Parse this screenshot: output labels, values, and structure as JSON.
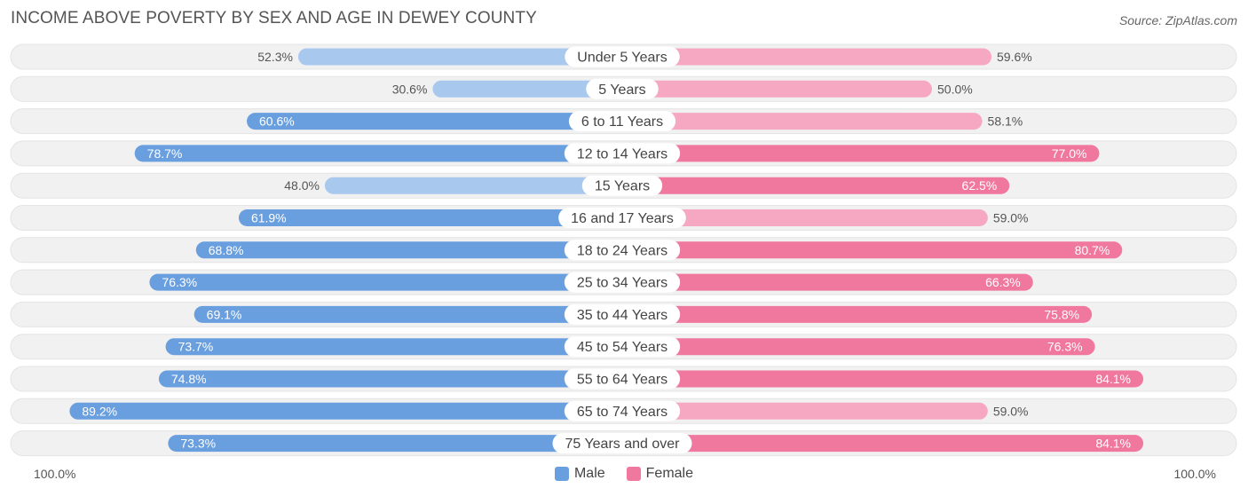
{
  "header": {
    "title": "INCOME ABOVE POVERTY BY SEX AND AGE IN DEWEY COUNTY",
    "source": "Source: ZipAtlas.com"
  },
  "axis": {
    "left_label": "100.0%",
    "right_label": "100.0%"
  },
  "legend": {
    "male_label": "Male",
    "female_label": "Female"
  },
  "colors": {
    "male_strong": "#6a9fdf",
    "male_light": "#a9c8ee",
    "female_strong": "#f0789f",
    "female_light": "#f6a8c2",
    "row_bg": "#f1f1f1"
  },
  "chart_data": {
    "type": "bar",
    "orientation": "horizontal-diverging",
    "title": "INCOME ABOVE POVERTY BY SEX AND AGE IN DEWEY COUNTY",
    "xlim": [
      0,
      100
    ],
    "categories": [
      "Under 5 Years",
      "5 Years",
      "6 to 11 Years",
      "12 to 14 Years",
      "15 Years",
      "16 and 17 Years",
      "18 to 24 Years",
      "25 to 34 Years",
      "35 to 44 Years",
      "45 to 54 Years",
      "55 to 64 Years",
      "65 to 74 Years",
      "75 Years and over"
    ],
    "series": [
      {
        "name": "Male",
        "values": [
          52.3,
          30.6,
          60.6,
          78.7,
          48.0,
          61.9,
          68.8,
          76.3,
          69.1,
          73.7,
          74.8,
          89.2,
          73.3
        ],
        "labels": [
          "52.3%",
          "30.6%",
          "60.6%",
          "78.7%",
          "48.0%",
          "61.9%",
          "68.8%",
          "76.3%",
          "69.1%",
          "73.7%",
          "74.8%",
          "89.2%",
          "73.3%"
        ]
      },
      {
        "name": "Female",
        "values": [
          59.6,
          50.0,
          58.1,
          77.0,
          62.5,
          59.0,
          80.7,
          66.3,
          75.8,
          76.3,
          84.1,
          59.0,
          84.1
        ],
        "labels": [
          "59.6%",
          "50.0%",
          "58.1%",
          "77.0%",
          "62.5%",
          "59.0%",
          "80.7%",
          "66.3%",
          "75.8%",
          "76.3%",
          "84.1%",
          "59.0%",
          "84.1%"
        ]
      }
    ]
  }
}
